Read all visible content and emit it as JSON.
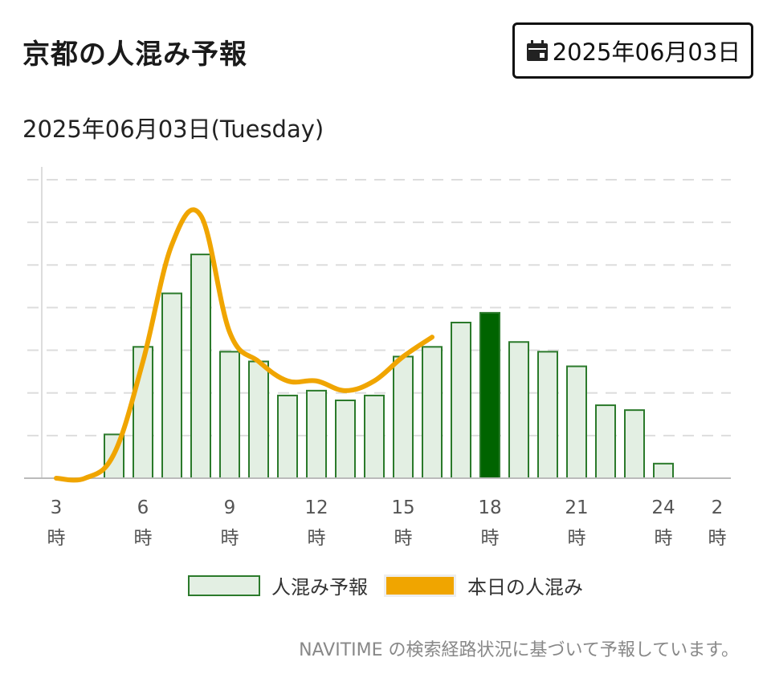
{
  "header": {
    "title": "京都の人混み予報",
    "date_button_label": "2025年06月03日",
    "date_button_icon": "calendar-icon"
  },
  "subtitle": "2025年06月03日(Tuesday)",
  "chart_data": {
    "type": "bar",
    "categories": [
      "3",
      "4",
      "5",
      "6",
      "7",
      "8",
      "9",
      "10",
      "11",
      "12",
      "13",
      "14",
      "15",
      "16",
      "17",
      "18",
      "19",
      "20",
      "21",
      "22",
      "23",
      "24",
      "1",
      "2"
    ],
    "tick_labels": [
      "3",
      "6",
      "9",
      "12",
      "15",
      "18",
      "21",
      "24",
      "2"
    ],
    "tick_unit": "時",
    "series": [
      {
        "name": "人混み予報",
        "kind": "bar",
        "values": [
          0,
          0,
          9,
          27,
          38,
          46,
          26,
          24,
          17,
          18,
          16,
          17,
          25,
          27,
          32,
          34,
          28,
          26,
          23,
          15,
          14,
          3,
          0,
          0
        ],
        "highlight_category": "18",
        "fill": "#e3efe3",
        "stroke": "#2b7a2b",
        "highlight_fill": "#006400"
      },
      {
        "name": "本日の人混み",
        "kind": "line",
        "values": [
          0,
          0,
          5,
          24,
          48,
          54,
          30,
          24,
          20,
          20,
          18,
          20,
          25,
          29,
          null,
          null,
          null,
          null,
          null,
          null,
          null,
          null,
          null,
          null
        ],
        "color": "#f0a500"
      }
    ],
    "ylim": [
      0,
      64
    ],
    "grid": true,
    "legend_position": "bottom"
  },
  "footer_note": "NAVITIME の検索経路状況に基づいて予報しています。"
}
